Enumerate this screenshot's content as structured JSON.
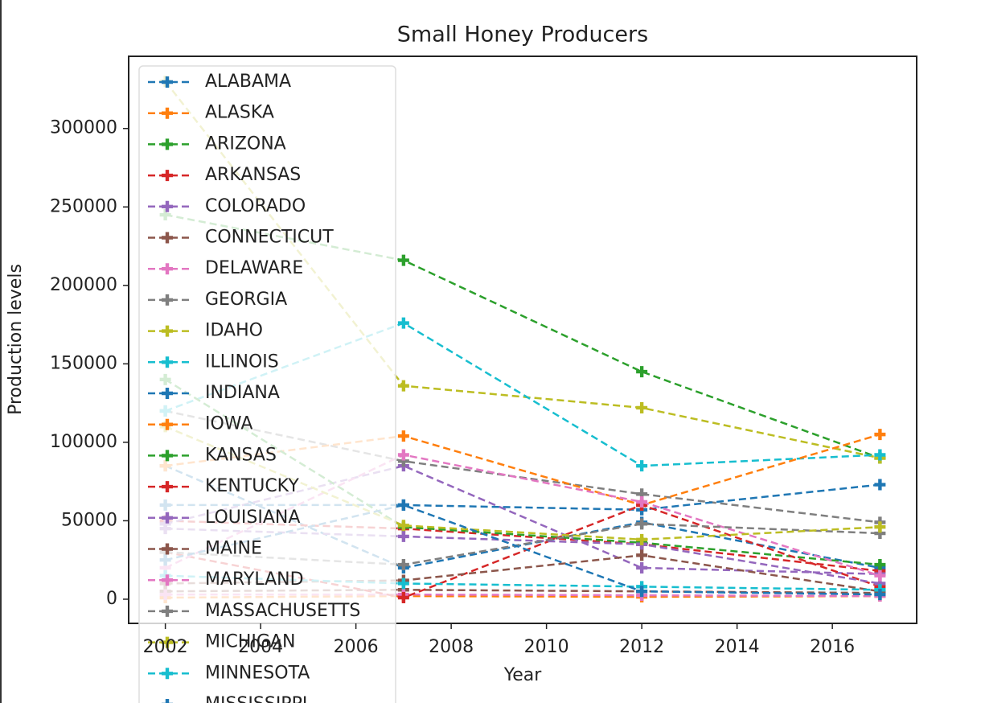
{
  "chart_data": {
    "type": "line",
    "title": "Small Honey Producers",
    "x_label": "Year",
    "y_label": "Production levels",
    "x": [
      2002,
      2007,
      2012,
      2017
    ],
    "xlim": [
      2001.23,
      2017.77
    ],
    "xticks": [
      2002,
      2004,
      2006,
      2008,
      2010,
      2012,
      2014,
      2016
    ],
    "ylim": [
      -15400,
      346000
    ],
    "yticks": [
      0,
      50000,
      100000,
      150000,
      200000,
      250000,
      300000
    ],
    "legend": "upper left",
    "series": [
      {
        "name": "ALABAMA",
        "color": "#1f77b4",
        "values": [
          85000,
          20000,
          49000,
          20000
        ]
      },
      {
        "name": "ALASKA",
        "color": "#ff7f0e",
        "values": [
          1000,
          2000,
          1500,
          2000
        ]
      },
      {
        "name": "ARIZONA",
        "color": "#2ca02c",
        "values": [
          245000,
          216000,
          145000,
          90000
        ]
      },
      {
        "name": "ARKANSAS",
        "color": "#d62728",
        "values": [
          50000,
          45000,
          35000,
          18000
        ]
      },
      {
        "name": "COLORADO",
        "color": "#9467bd",
        "values": [
          48000,
          85000,
          20000,
          16000
        ]
      },
      {
        "name": "CONNECTICUT",
        "color": "#8c564b",
        "values": [
          5000,
          6000,
          5000,
          4000
        ]
      },
      {
        "name": "DELAWARE",
        "color": "#e377c2",
        "values": [
          3000,
          3000,
          2500,
          2000
        ]
      },
      {
        "name": "GEORGIA",
        "color": "#7f7f7f",
        "values": [
          120000,
          88000,
          67000,
          49000
        ]
      },
      {
        "name": "IDAHO",
        "color": "#bcbd22",
        "values": [
          330000,
          136000,
          122000,
          90000
        ]
      },
      {
        "name": "ILLINOIS",
        "color": "#17becf",
        "values": [
          120000,
          176000,
          85000,
          92000
        ]
      },
      {
        "name": "INDIANA",
        "color": "#1f77b4",
        "values": [
          60000,
          60000,
          57000,
          73000
        ]
      },
      {
        "name": "IOWA",
        "color": "#ff7f0e",
        "values": [
          85000,
          104000,
          60000,
          105000
        ]
      },
      {
        "name": "KANSAS",
        "color": "#2ca02c",
        "values": [
          140000,
          46000,
          36000,
          22000
        ]
      },
      {
        "name": "KENTUCKY",
        "color": "#d62728",
        "values": [
          30000,
          1000,
          60000,
          8000
        ]
      },
      {
        "name": "LOUISIANA",
        "color": "#9467bd",
        "values": [
          45000,
          40000,
          35000,
          10000
        ]
      },
      {
        "name": "MAINE",
        "color": "#8c564b",
        "values": [
          10000,
          12000,
          28000,
          5000
        ]
      },
      {
        "name": "MARYLAND",
        "color": "#e377c2",
        "values": [
          20000,
          92000,
          62000,
          15000
        ]
      },
      {
        "name": "MASSACHUSETTS",
        "color": "#7f7f7f",
        "values": [
          30000,
          22000,
          48000,
          42000
        ]
      },
      {
        "name": "MICHIGAN",
        "color": "#bcbd22",
        "values": [
          110000,
          47000,
          38000,
          46000
        ]
      },
      {
        "name": "MINNESOTA",
        "color": "#17becf",
        "values": [
          15000,
          10000,
          8000,
          6000
        ]
      },
      {
        "name": "MISSISSIPPI",
        "color": "#1f77b4",
        "values": [
          25000,
          60000,
          5000,
          3000
        ]
      }
    ]
  }
}
